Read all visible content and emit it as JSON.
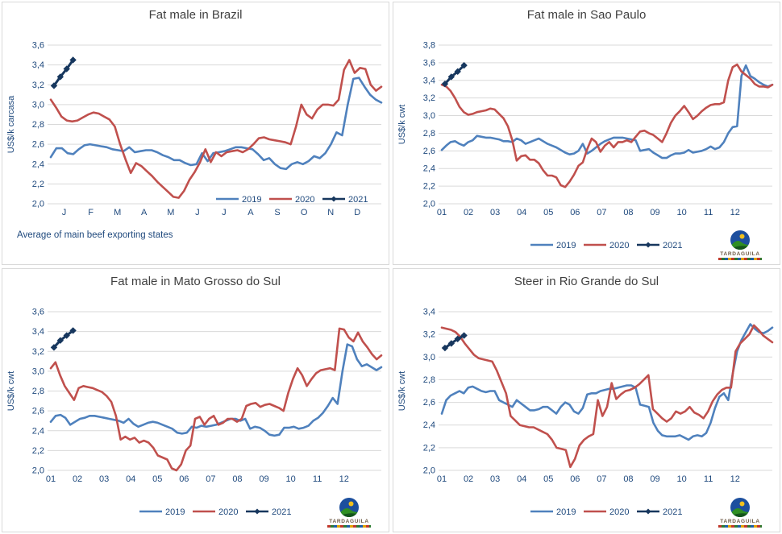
{
  "colors": {
    "series_2019": "#4f81bd",
    "series_2020": "#c0504d",
    "series_2021": "#17375e",
    "gridline": "#d9d9d9",
    "axis_text": "#1f497d",
    "title_text": "#404040",
    "panel_border": "#d9d9d9"
  },
  "logo": {
    "name": "TARDAGUILA"
  },
  "chart_data": [
    {
      "type": "line",
      "title": "Fat male in Brazil",
      "xlabel": "",
      "ylabel": "US$/k carcasa",
      "ylim": [
        2.0,
        3.6
      ],
      "ytick_step": 0.2,
      "yticklabels": [
        "2,0",
        "2,2",
        "2,4",
        "2,6",
        "2,8",
        "3,0",
        "3,2",
        "3,4",
        "3,6"
      ],
      "xticklabels": [
        "J",
        "F",
        "M",
        "A",
        "M",
        "J",
        "J",
        "A",
        "S",
        "O",
        "N",
        "D"
      ],
      "xtick_align": "center",
      "grid": true,
      "legend_position": "inside-bottom-right",
      "legend": [
        "2019",
        "2020",
        "2021"
      ],
      "footnote": "Average of main beef exporting states",
      "show_logo": false,
      "series": [
        {
          "name": "2019",
          "color": "#4f81bd",
          "values": [
            2.47,
            2.56,
            2.56,
            2.51,
            2.5,
            2.55,
            2.59,
            2.6,
            2.59,
            2.58,
            2.57,
            2.55,
            2.54,
            2.53,
            2.57,
            2.52,
            2.53,
            2.54,
            2.54,
            2.52,
            2.49,
            2.47,
            2.44,
            2.44,
            2.41,
            2.39,
            2.4,
            2.51,
            2.43,
            2.51,
            2.52,
            2.53,
            2.55,
            2.57,
            2.57,
            2.56,
            2.55,
            2.5,
            2.44,
            2.46,
            2.4,
            2.36,
            2.35,
            2.4,
            2.42,
            2.4,
            2.43,
            2.48,
            2.46,
            2.51,
            2.6,
            2.72,
            2.69,
            3.0,
            3.26,
            3.27,
            3.18,
            3.1,
            3.05,
            3.02
          ]
        },
        {
          "name": "2020",
          "color": "#c0504d",
          "values": [
            3.05,
            2.97,
            2.88,
            2.84,
            2.83,
            2.84,
            2.87,
            2.9,
            2.92,
            2.91,
            2.88,
            2.85,
            2.78,
            2.6,
            2.45,
            2.31,
            2.41,
            2.38,
            2.33,
            2.28,
            2.22,
            2.17,
            2.12,
            2.07,
            2.06,
            2.13,
            2.24,
            2.32,
            2.42,
            2.55,
            2.42,
            2.52,
            2.48,
            2.52,
            2.53,
            2.54,
            2.52,
            2.55,
            2.6,
            2.66,
            2.67,
            2.65,
            2.64,
            2.63,
            2.62,
            2.6,
            2.78,
            3.0,
            2.9,
            2.86,
            2.95,
            3.0,
            3.0,
            2.99,
            3.05,
            3.35,
            3.45,
            3.32,
            3.37,
            3.36,
            3.2,
            3.14,
            3.18
          ]
        },
        {
          "name": "2021",
          "color": "#17375e",
          "marker": "diamond",
          "x_weeks": [
            0,
            1,
            2,
            3
          ],
          "values": [
            3.19,
            3.28,
            3.36,
            3.45
          ]
        }
      ]
    },
    {
      "type": "line",
      "title": "Fat male in Sao Paulo",
      "xlabel": "",
      "ylabel": "US$/k cwt",
      "ylim": [
        2.0,
        3.8
      ],
      "ytick_step": 0.2,
      "yticklabels": [
        "2,0",
        "2,2",
        "2,4",
        "2,6",
        "2,8",
        "3,0",
        "3,2",
        "3,4",
        "3,6",
        "3,8"
      ],
      "xticklabels": [
        "01",
        "02",
        "03",
        "04",
        "05",
        "06",
        "07",
        "08",
        "09",
        "10",
        "11",
        "12"
      ],
      "xtick_align": "start",
      "grid": true,
      "legend_position": "below",
      "legend": [
        "2019",
        "2020",
        "2021"
      ],
      "footnote": "",
      "show_logo": true,
      "series": [
        {
          "name": "2019",
          "color": "#4f81bd",
          "values": [
            2.61,
            2.66,
            2.7,
            2.71,
            2.68,
            2.66,
            2.7,
            2.72,
            2.77,
            2.76,
            2.75,
            2.75,
            2.74,
            2.73,
            2.71,
            2.71,
            2.7,
            2.74,
            2.72,
            2.68,
            2.7,
            2.72,
            2.74,
            2.71,
            2.68,
            2.66,
            2.64,
            2.61,
            2.58,
            2.56,
            2.57,
            2.6,
            2.68,
            2.57,
            2.6,
            2.64,
            2.68,
            2.71,
            2.73,
            2.75,
            2.75,
            2.75,
            2.74,
            2.73,
            2.72,
            2.6,
            2.61,
            2.62,
            2.58,
            2.55,
            2.52,
            2.52,
            2.55,
            2.57,
            2.57,
            2.58,
            2.61,
            2.58,
            2.59,
            2.6,
            2.62,
            2.65,
            2.62,
            2.64,
            2.7,
            2.8,
            2.87,
            2.88,
            3.45,
            3.57,
            3.45,
            3.42,
            3.38,
            3.35,
            3.33,
            3.35
          ]
        },
        {
          "name": "2020",
          "color": "#c0504d",
          "values": [
            3.35,
            3.33,
            3.28,
            3.2,
            3.1,
            3.04,
            3.01,
            3.02,
            3.04,
            3.05,
            3.06,
            3.08,
            3.07,
            3.02,
            2.97,
            2.88,
            2.72,
            2.49,
            2.54,
            2.55,
            2.5,
            2.5,
            2.46,
            2.38,
            2.32,
            2.32,
            2.3,
            2.21,
            2.19,
            2.25,
            2.33,
            2.43,
            2.47,
            2.62,
            2.74,
            2.7,
            2.59,
            2.66,
            2.7,
            2.64,
            2.7,
            2.7,
            2.72,
            2.7,
            2.76,
            2.82,
            2.83,
            2.8,
            2.78,
            2.74,
            2.7,
            2.8,
            2.92,
            3.0,
            3.05,
            3.11,
            3.04,
            2.96,
            3.0,
            3.05,
            3.09,
            3.12,
            3.13,
            3.13,
            3.15,
            3.4,
            3.55,
            3.58,
            3.5,
            3.46,
            3.42,
            3.36,
            3.33,
            3.33,
            3.32,
            3.35
          ]
        },
        {
          "name": "2021",
          "color": "#17375e",
          "marker": "diamond",
          "x_weeks": [
            0,
            1,
            2,
            3
          ],
          "values": [
            3.36,
            3.44,
            3.5,
            3.57
          ]
        }
      ]
    },
    {
      "type": "line",
      "title": "Fat male in Mato Grosso do Sul",
      "xlabel": "",
      "ylabel": "US$/k cwt",
      "ylim": [
        2.0,
        3.6
      ],
      "ytick_step": 0.2,
      "yticklabels": [
        "2,0",
        "2,2",
        "2,4",
        "2,6",
        "2,8",
        "3,0",
        "3,2",
        "3,4",
        "3,6"
      ],
      "xticklabels": [
        "01",
        "02",
        "03",
        "04",
        "05",
        "06",
        "07",
        "08",
        "09",
        "10",
        "11",
        "12"
      ],
      "xtick_align": "start",
      "grid": true,
      "legend_position": "below",
      "legend": [
        "2019",
        "2020",
        "2021"
      ],
      "footnote": "",
      "show_logo": true,
      "series": [
        {
          "name": "2019",
          "color": "#4f81bd",
          "values": [
            2.49,
            2.55,
            2.56,
            2.53,
            2.46,
            2.49,
            2.52,
            2.53,
            2.55,
            2.55,
            2.54,
            2.53,
            2.52,
            2.51,
            2.5,
            2.48,
            2.52,
            2.47,
            2.44,
            2.46,
            2.48,
            2.49,
            2.48,
            2.46,
            2.44,
            2.42,
            2.38,
            2.37,
            2.38,
            2.44,
            2.43,
            2.45,
            2.44,
            2.45,
            2.46,
            2.48,
            2.5,
            2.52,
            2.52,
            2.5,
            2.52,
            2.42,
            2.44,
            2.43,
            2.4,
            2.36,
            2.35,
            2.36,
            2.43,
            2.43,
            2.44,
            2.42,
            2.43,
            2.45,
            2.5,
            2.53,
            2.58,
            2.65,
            2.73,
            2.67,
            3.0,
            3.27,
            3.25,
            3.12,
            3.05,
            3.07,
            3.04,
            3.01,
            3.04
          ]
        },
        {
          "name": "2020",
          "color": "#c0504d",
          "values": [
            3.03,
            3.09,
            2.96,
            2.85,
            2.78,
            2.71,
            2.83,
            2.85,
            2.84,
            2.83,
            2.81,
            2.79,
            2.75,
            2.69,
            2.55,
            2.31,
            2.34,
            2.31,
            2.33,
            2.28,
            2.3,
            2.28,
            2.23,
            2.15,
            2.13,
            2.11,
            2.02,
            2.0,
            2.06,
            2.2,
            2.25,
            2.52,
            2.54,
            2.46,
            2.52,
            2.55,
            2.46,
            2.48,
            2.52,
            2.52,
            2.49,
            2.52,
            2.65,
            2.67,
            2.68,
            2.64,
            2.66,
            2.67,
            2.65,
            2.63,
            2.6,
            2.78,
            2.92,
            3.03,
            2.96,
            2.85,
            2.92,
            2.98,
            3.01,
            3.02,
            3.03,
            3.01,
            3.43,
            3.42,
            3.34,
            3.3,
            3.39,
            3.3,
            3.24,
            3.17,
            3.12,
            3.16
          ]
        },
        {
          "name": "2021",
          "color": "#17375e",
          "marker": "diamond",
          "x_weeks": [
            0,
            1,
            2,
            3
          ],
          "values": [
            3.24,
            3.31,
            3.36,
            3.41
          ]
        }
      ]
    },
    {
      "type": "line",
      "title": "Steer in Rio Grande do Sul",
      "xlabel": "",
      "ylabel": "US$/k cwt",
      "ylim": [
        2.0,
        3.4
      ],
      "ytick_step": 0.2,
      "yticklabels": [
        "2,0",
        "2,2",
        "2,4",
        "2,6",
        "2,8",
        "3,0",
        "3,2",
        "3,4"
      ],
      "xticklabels": [
        "01",
        "02",
        "03",
        "04",
        "05",
        "06",
        "07",
        "08",
        "09",
        "10",
        "11",
        "12"
      ],
      "xtick_align": "start",
      "grid": true,
      "legend_position": "below",
      "legend": [
        "2019",
        "2020",
        "2021"
      ],
      "footnote": "",
      "show_logo": true,
      "series": [
        {
          "name": "2019",
          "color": "#4f81bd",
          "values": [
            2.5,
            2.62,
            2.66,
            2.68,
            2.7,
            2.68,
            2.73,
            2.74,
            2.72,
            2.7,
            2.69,
            2.7,
            2.7,
            2.62,
            2.6,
            2.58,
            2.56,
            2.62,
            2.59,
            2.56,
            2.53,
            2.53,
            2.54,
            2.56,
            2.56,
            2.53,
            2.5,
            2.56,
            2.6,
            2.58,
            2.52,
            2.5,
            2.55,
            2.67,
            2.68,
            2.68,
            2.7,
            2.71,
            2.72,
            2.72,
            2.73,
            2.74,
            2.75,
            2.75,
            2.73,
            2.58,
            2.57,
            2.56,
            2.42,
            2.35,
            2.31,
            2.3,
            2.3,
            2.3,
            2.31,
            2.29,
            2.27,
            2.3,
            2.31,
            2.3,
            2.33,
            2.42,
            2.55,
            2.65,
            2.68,
            2.62,
            2.85,
            3.05,
            3.15,
            3.22,
            3.29,
            3.25,
            3.22,
            3.21,
            3.23,
            3.26
          ]
        },
        {
          "name": "2020",
          "color": "#c0504d",
          "values": [
            3.26,
            3.25,
            3.24,
            3.22,
            3.18,
            3.12,
            3.07,
            3.02,
            2.99,
            2.98,
            2.97,
            2.96,
            2.88,
            2.78,
            2.68,
            2.48,
            2.44,
            2.4,
            2.39,
            2.38,
            2.38,
            2.36,
            2.34,
            2.32,
            2.27,
            2.2,
            2.19,
            2.18,
            2.03,
            2.1,
            2.22,
            2.27,
            2.3,
            2.32,
            2.62,
            2.48,
            2.56,
            2.77,
            2.63,
            2.67,
            2.7,
            2.71,
            2.73,
            2.76,
            2.8,
            2.84,
            2.54,
            2.5,
            2.46,
            2.43,
            2.46,
            2.52,
            2.5,
            2.52,
            2.56,
            2.51,
            2.49,
            2.46,
            2.52,
            2.61,
            2.67,
            2.71,
            2.73,
            2.73,
            3.05,
            3.12,
            3.16,
            3.2,
            3.28,
            3.24,
            3.19,
            3.16,
            3.13
          ]
        },
        {
          "name": "2021",
          "color": "#17375e",
          "marker": "diamond",
          "x_weeks": [
            0,
            1,
            2,
            3
          ],
          "values": [
            3.08,
            3.12,
            3.16,
            3.19
          ]
        }
      ]
    }
  ]
}
